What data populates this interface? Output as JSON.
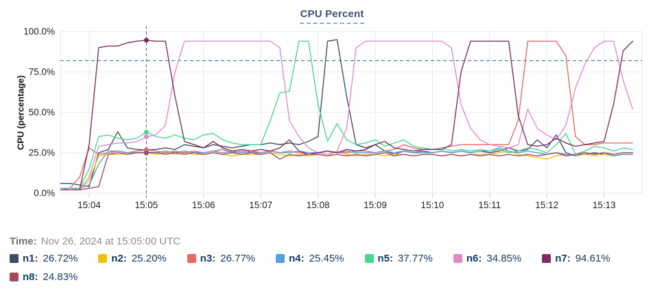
{
  "title": "CPU Percent",
  "time_row": {
    "label": "Time:",
    "value": "Nov 26, 2024 at 15:05:00 UTC"
  },
  "chart_data": {
    "type": "line",
    "title": "CPU Percent",
    "xlabel": "",
    "ylabel": "CPU (percentage)",
    "ylim": [
      0,
      100
    ],
    "y_tick_values": [
      0,
      25,
      50,
      75,
      100
    ],
    "y_tick_labels": [
      "0.0%",
      "25.0%",
      "50.0%",
      "75.0%",
      "100.0%"
    ],
    "x_tick_labels": [
      "15:04",
      "15:05",
      "15:06",
      "15:07",
      "15:08",
      "15:09",
      "15:10",
      "15:11",
      "15:12",
      "15:13"
    ],
    "x_start_time": "15:03:30",
    "x_step_seconds": 10,
    "grid": true,
    "legend_position": "bottom",
    "threshold_percent": 82,
    "crosshair_index": 9,
    "crosshair_time": "15:05:00",
    "grid_color": "#e9e9e9",
    "tick_color": "#cfcfcf",
    "crosshair_color": "#4c7c92",
    "series": [
      {
        "name": "n1",
        "color": "#3d4e66",
        "legend_value": "26.72%",
        "values": [
          6,
          6,
          5,
          4,
          25,
          27,
          38,
          28,
          27,
          26.72,
          27,
          28,
          27,
          30,
          29,
          28,
          30,
          29,
          28,
          29,
          30,
          30,
          31,
          30,
          31,
          30,
          32,
          35,
          94,
          95,
          60,
          30,
          28,
          30,
          26,
          24,
          26,
          25,
          26,
          25,
          26,
          25,
          26,
          25,
          26,
          25,
          26,
          28,
          26,
          27,
          33,
          28,
          36,
          25,
          23,
          24,
          25,
          24,
          23,
          24,
          24
        ]
      },
      {
        "name": "n2",
        "color": "#f2c20b",
        "legend_value": "25.20%",
        "values": [
          2,
          2,
          2,
          8,
          23,
          24,
          24,
          25,
          25,
          25.2,
          24,
          25,
          24,
          25,
          24,
          24,
          25,
          24,
          23,
          24,
          24,
          24,
          25,
          24,
          23,
          24,
          23,
          24,
          23,
          26,
          24,
          23,
          24,
          24,
          23,
          24,
          24,
          23,
          24,
          24,
          23,
          24,
          23,
          24,
          24,
          24,
          25,
          26,
          24,
          23,
          22,
          21,
          23,
          24,
          23,
          24,
          23,
          24,
          23,
          24,
          24
        ]
      },
      {
        "name": "n3",
        "color": "#e96962",
        "legend_value": "26.77%",
        "values": [
          2,
          3,
          10,
          28,
          24,
          25,
          26,
          25,
          26,
          26.77,
          26,
          25,
          26,
          25,
          26,
          25,
          26,
          27,
          25,
          26,
          25,
          25,
          26,
          25,
          26,
          25,
          24,
          25,
          26,
          25,
          25,
          26,
          26,
          25,
          26,
          27,
          30,
          28,
          27,
          27,
          28,
          29,
          30,
          30,
          30,
          30,
          30,
          30,
          45,
          94,
          94,
          94,
          94,
          85,
          35,
          30,
          30,
          31,
          31,
          31,
          31
        ]
      },
      {
        "name": "n4",
        "color": "#54a1d6",
        "legend_value": "25.45%",
        "values": [
          3,
          3,
          3,
          5,
          18,
          26,
          26,
          25,
          25,
          25.45,
          25,
          26,
          25,
          26,
          25,
          25,
          26,
          25,
          26,
          25,
          26,
          25,
          26,
          25,
          25,
          26,
          25,
          25,
          26,
          25,
          26,
          25,
          25,
          25,
          26,
          25,
          26,
          25,
          25,
          25,
          26,
          25,
          26,
          25,
          26,
          26,
          28,
          26,
          25,
          26,
          25,
          24,
          25,
          24,
          23,
          25,
          24,
          25,
          23,
          24,
          24
        ]
      },
      {
        "name": "n5",
        "color": "#49d68f",
        "legend_value": "37.77%",
        "values": [
          2,
          2,
          3,
          15,
          35,
          36,
          34,
          33,
          34,
          37.77,
          35,
          34,
          36,
          34,
          33,
          36,
          37,
          33,
          31,
          30,
          30,
          30,
          45,
          62,
          63,
          94,
          94,
          55,
          32,
          43,
          33,
          30,
          31,
          33,
          29,
          31,
          33,
          29,
          28,
          27,
          28,
          26,
          27,
          26,
          27,
          26,
          27,
          25,
          26,
          28,
          27,
          25,
          30,
          37,
          24,
          26,
          29,
          28,
          26,
          28,
          27
        ]
      },
      {
        "name": "n6",
        "color": "#dd8ace",
        "legend_value": "34.85%",
        "values": [
          2,
          2,
          2,
          10,
          29,
          30,
          31,
          31,
          32,
          34.85,
          36,
          42,
          75,
          94,
          94,
          94,
          94,
          94,
          94,
          94,
          94,
          94,
          94,
          90,
          45,
          35,
          28,
          25,
          24,
          26,
          40,
          90,
          94,
          94,
          94,
          94,
          94,
          94,
          94,
          94,
          94,
          90,
          55,
          40,
          33,
          30,
          29,
          28,
          30,
          52,
          40,
          36,
          33,
          42,
          65,
          80,
          90,
          94,
          94,
          70,
          52
        ]
      },
      {
        "name": "n7",
        "color": "#7f2c62",
        "legend_value": "94.61%",
        "values": [
          2,
          2,
          2,
          30,
          90,
          91,
          91,
          93,
          94,
          94.61,
          94,
          94,
          60,
          32,
          30,
          28,
          32,
          28,
          26,
          27,
          26,
          27,
          26,
          28,
          33,
          26,
          24,
          25,
          26,
          25,
          27,
          26,
          27,
          30,
          32,
          28,
          27,
          26,
          27,
          27,
          27,
          30,
          75,
          94,
          94,
          94,
          94,
          94,
          48,
          30,
          29,
          30,
          34,
          31,
          29,
          30,
          31,
          32,
          55,
          88,
          94
        ]
      },
      {
        "name": "n8",
        "color": "#a34a62",
        "legend_value": "24.83%",
        "values": [
          2,
          2,
          2,
          3,
          4,
          24,
          25,
          24,
          25,
          24.83,
          25,
          24,
          25,
          24,
          25,
          24,
          25,
          24,
          25,
          24,
          25,
          24,
          25,
          21,
          24,
          23,
          24,
          24,
          23,
          24,
          23,
          24,
          23,
          24,
          25,
          23,
          24,
          23,
          24,
          24,
          23,
          24,
          23,
          24,
          23,
          24,
          23,
          24,
          23,
          24,
          23,
          24,
          25,
          23,
          24,
          25,
          24,
          25,
          24,
          25,
          25
        ]
      }
    ]
  }
}
